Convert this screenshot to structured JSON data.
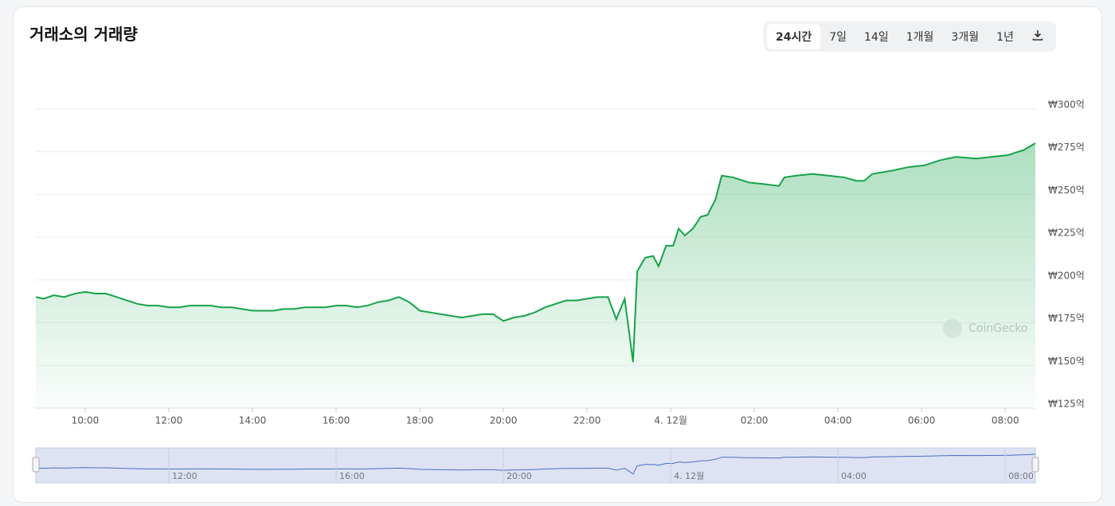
{
  "chart_data": {
    "type": "area",
    "title": "거래소의 거래량",
    "ranges": [
      "24시간",
      "7일",
      "14일",
      "1개월",
      "3개월",
      "1년"
    ],
    "watermark": "CoinGecko",
    "color": "#16a34a",
    "x": [
      8.82,
      9.0,
      9.25,
      9.5,
      9.75,
      10.0,
      10.25,
      10.5,
      10.75,
      11.0,
      11.25,
      11.5,
      11.75,
      12.0,
      12.25,
      12.5,
      12.75,
      13.0,
      13.25,
      13.5,
      13.75,
      14.0,
      14.25,
      14.5,
      14.75,
      15.0,
      15.25,
      15.5,
      15.75,
      16.0,
      16.25,
      16.5,
      16.75,
      17.0,
      17.25,
      17.5,
      17.75,
      18.0,
      18.25,
      18.5,
      18.75,
      19.0,
      19.25,
      19.5,
      19.75,
      20.0,
      20.25,
      20.5,
      20.75,
      21.0,
      21.25,
      21.5,
      21.75,
      22.0,
      22.25,
      22.5,
      22.7,
      22.9,
      23.1,
      23.2,
      23.39,
      23.58,
      23.71,
      23.89,
      24.06,
      24.19,
      24.34,
      24.53,
      24.72,
      24.88,
      25.07,
      25.22,
      25.49,
      25.87,
      26.25,
      26.59,
      26.72,
      27.01,
      27.39,
      27.77,
      28.15,
      28.44,
      28.63,
      28.82,
      29.3,
      29.68,
      30.06,
      30.44,
      30.82,
      31.3,
      31.68,
      32.06,
      32.44,
      32.72
    ],
    "series": [
      {
        "name": "거래량",
        "values": [
          190,
          189,
          191,
          190,
          192,
          193,
          192,
          192,
          190,
          188,
          186,
          185,
          185,
          184,
          184,
          185,
          185,
          185,
          184,
          184,
          183,
          182,
          182,
          182,
          183,
          183,
          184,
          184,
          184,
          185,
          185,
          184,
          185,
          187,
          188,
          190,
          187,
          182,
          181,
          180,
          179,
          178,
          179,
          180,
          180,
          176,
          178,
          179,
          181,
          184,
          186,
          188,
          188,
          189,
          190,
          190,
          177,
          189,
          152,
          205,
          213,
          214,
          208,
          220,
          220,
          230,
          226,
          230,
          237,
          238,
          247,
          261,
          260,
          257,
          256,
          255,
          260,
          261,
          262,
          261,
          260,
          258,
          258,
          262,
          264,
          266,
          267,
          270,
          272,
          271,
          272,
          273,
          276,
          280
        ]
      }
    ],
    "xlim": [
      8.82,
      32.72
    ],
    "xticks": [
      {
        "value": 10,
        "label": "10:00"
      },
      {
        "value": 12,
        "label": "12:00"
      },
      {
        "value": 14,
        "label": "14:00"
      },
      {
        "value": 16,
        "label": "16:00"
      },
      {
        "value": 18,
        "label": "18:00"
      },
      {
        "value": 20,
        "label": "20:00"
      },
      {
        "value": 22,
        "label": "22:00"
      },
      {
        "value": 24,
        "label": "4. 12월"
      },
      {
        "value": 26,
        "label": "02:00"
      },
      {
        "value": 28,
        "label": "04:00"
      },
      {
        "value": 30,
        "label": "06:00"
      },
      {
        "value": 32,
        "label": "08:00"
      }
    ],
    "ylim": [
      125,
      300
    ],
    "yticks": [
      {
        "value": 125,
        "label": "₩125억"
      },
      {
        "value": 150,
        "label": "₩150억"
      },
      {
        "value": 175,
        "label": "₩175억"
      },
      {
        "value": 200,
        "label": "₩200억"
      },
      {
        "value": 225,
        "label": "₩225억"
      },
      {
        "value": 250,
        "label": "₩250억"
      },
      {
        "value": 275,
        "label": "₩275억"
      },
      {
        "value": 300,
        "label": "₩300억"
      }
    ],
    "grid": true
  }
}
